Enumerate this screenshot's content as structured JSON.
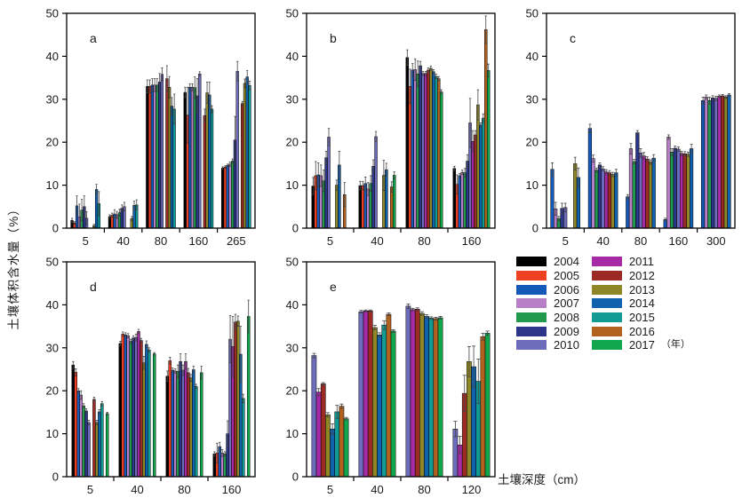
{
  "figure": {
    "ylabel": "土壤体积含水量（%）",
    "xlabel": "土壤深度（cm）",
    "legend_unit": "（年）"
  },
  "colors": {
    "2004": "#000000",
    "2005": "#ee4023",
    "2006": "#1459b8",
    "2007": "#b77fc5",
    "2008": "#219a4d",
    "2009": "#2b3589",
    "2010": "#6d6cba",
    "2011": "#a62aa5",
    "2012": "#9c2b25",
    "2013": "#8f8627",
    "2014": "#1061ae",
    "2015": "#129a94",
    "2016": "#b2611f",
    "2017": "#0fa64e"
  },
  "legend": {
    "columns": [
      [
        "2004",
        "2005",
        "2006",
        "2007",
        "2008",
        "2009",
        "2010"
      ],
      [
        "2011",
        "2012",
        "2013",
        "2014",
        "2015",
        "2016",
        "2017"
      ]
    ]
  },
  "chart_data": [
    {
      "type": "bar",
      "panel": "a",
      "ylim": [
        0,
        50
      ],
      "yticks": [
        0,
        10,
        20,
        30,
        40,
        50
      ],
      "categories": [
        "5",
        "40",
        "80",
        "160",
        "265"
      ],
      "years": [
        "2004",
        "2005",
        "2006",
        "2007",
        "2008",
        "2009",
        "2010",
        "2011",
        "2012",
        "2013",
        "2014",
        "2015"
      ],
      "values": [
        [
          1.8,
          1.2,
          5.2,
          2.6,
          4.2,
          5.0,
          2.3,
          null,
          null,
          0.6,
          9.0,
          5.7
        ],
        [
          2.7,
          3.0,
          3.3,
          3.1,
          3.6,
          4.6,
          5.0,
          null,
          null,
          2.2,
          5.3,
          5.4
        ],
        [
          33.0,
          33.0,
          33.3,
          33.3,
          33.3,
          34.0,
          35.8,
          null,
          34.8,
          32.8,
          28.4,
          27.7
        ],
        [
          31.6,
          26.3,
          32.8,
          32.8,
          32.7,
          30.8,
          35.9,
          null,
          26.2,
          31.5,
          31.0,
          27.7
        ],
        [
          14.0,
          14.2,
          14.6,
          14.9,
          15.6,
          20.5,
          36.5,
          null,
          29.0,
          33.7,
          35.2,
          33.2
        ]
      ],
      "errors": [
        [
          0.5,
          0.3,
          2.3,
          3.0,
          2.5,
          2.5,
          1.5,
          null,
          null,
          0.3,
          1.2,
          2.8
        ],
        [
          0.4,
          0.5,
          1.0,
          0.8,
          0.8,
          0.8,
          1.0,
          null,
          null,
          0.5,
          1.0,
          1.2
        ],
        [
          1.5,
          1.5,
          1.5,
          1.5,
          1.5,
          2.0,
          1.5,
          null,
          3.0,
          2.5,
          2.0,
          3.5
        ],
        [
          1.2,
          6.5,
          0.8,
          0.8,
          2.5,
          4.0,
          0.5,
          null,
          1.5,
          2.5,
          3.0,
          0.8
        ],
        [
          0.3,
          0.3,
          0.3,
          0.5,
          0.5,
          5.5,
          2.3,
          null,
          0.5,
          1.0,
          1.5,
          1.0
        ]
      ]
    },
    {
      "type": "bar",
      "panel": "b",
      "ylim": [
        0,
        50
      ],
      "yticks": [
        0,
        10,
        20,
        30,
        40,
        50
      ],
      "categories": [
        "5",
        "40",
        "80",
        "160"
      ],
      "years": [
        "2004",
        "2005",
        "2006",
        "2007",
        "2008",
        "2009",
        "2010",
        "2011",
        "2012",
        "2013",
        "2014",
        "2015",
        "2016",
        "2017"
      ],
      "values": [
        [
          9.8,
          12.2,
          12.4,
          12.2,
          11.0,
          16.4,
          21.2,
          null,
          null,
          10.0,
          14.7,
          null,
          7.8,
          null
        ],
        [
          9.9,
          9.9,
          10.4,
          9.1,
          10.4,
          14.4,
          21.3,
          null,
          null,
          12.3,
          13.6,
          null,
          9.6,
          12.3
        ],
        [
          39.7,
          33.0,
          36.8,
          36.9,
          35.9,
          37.8,
          36.0,
          36.0,
          36.8,
          37.2,
          36.4,
          35.3,
          34.8,
          31.7
        ],
        [
          13.9,
          10.2,
          12.2,
          13.0,
          12.9,
          15.6,
          24.5,
          20.2,
          21.7,
          28.7,
          24.0,
          25.6,
          46.2,
          36.7
        ]
      ],
      "errors": [
        [
          2.0,
          3.3,
          2.8,
          2.5,
          2.5,
          1.5,
          2.0,
          null,
          null,
          1.2,
          3.2,
          null,
          2.8,
          null
        ],
        [
          1.0,
          1.0,
          1.5,
          1.5,
          1.8,
          1.5,
          1.2,
          null,
          null,
          3.5,
          1.5,
          null,
          1.2,
          0.8
        ],
        [
          1.8,
          4.0,
          1.5,
          2.5,
          3.0,
          1.0,
          0.5,
          0.5,
          0.5,
          0.5,
          0.5,
          0.5,
          0.5,
          0.5
        ],
        [
          0.5,
          2.2,
          0.5,
          0.5,
          1.0,
          1.5,
          5.7,
          2.5,
          1.0,
          3.5,
          0.5,
          1.0,
          3.2,
          1.5
        ]
      ]
    },
    {
      "type": "bar",
      "panel": "c",
      "ylim": [
        0,
        50
      ],
      "yticks": [
        0,
        10,
        20,
        30,
        40,
        50
      ],
      "categories": [
        "5",
        "40",
        "80",
        "160",
        "300"
      ],
      "years": [
        "2006",
        "2007",
        "2008",
        "2009",
        "2010",
        "2011",
        "2012",
        "2013",
        "2014"
      ],
      "values": [
        [
          13.7,
          4.5,
          2.2,
          4.6,
          4.8,
          null,
          null,
          15.0,
          11.8
        ],
        [
          23.2,
          16.2,
          13.5,
          14.7,
          13.8,
          13.1,
          12.9,
          12.5,
          12.9
        ],
        [
          7.3,
          18.5,
          15.5,
          22.2,
          17.5,
          16.8,
          16.1,
          15.4,
          16.3
        ],
        [
          2.0,
          21.2,
          17.7,
          18.6,
          18.4,
          17.4,
          17.3,
          17.2,
          18.5
        ],
        [
          29.7,
          30.5,
          29.7,
          30.3,
          30.2,
          30.7,
          30.8,
          30.5,
          31.0
        ]
      ],
      "errors": [
        [
          1.5,
          1.5,
          0.5,
          1.2,
          1.0,
          null,
          null,
          1.5,
          2.2
        ],
        [
          1.0,
          0.8,
          0.5,
          0.5,
          0.5,
          0.5,
          0.5,
          0.5,
          0.8
        ],
        [
          0.5,
          1.2,
          0.5,
          0.5,
          1.0,
          0.8,
          0.5,
          0.5,
          0.8
        ],
        [
          0.3,
          0.5,
          0.8,
          0.5,
          0.5,
          0.5,
          0.5,
          0.5,
          1.0
        ],
        [
          0.8,
          0.5,
          0.8,
          0.5,
          0.5,
          0.3,
          0.3,
          0.3,
          0.3
        ]
      ]
    },
    {
      "type": "bar",
      "panel": "d",
      "ylim": [
        0,
        50
      ],
      "yticks": [
        0,
        10,
        20,
        30,
        40,
        50
      ],
      "categories": [
        "5",
        "40",
        "80",
        "160"
      ],
      "years": [
        "2004",
        "2005",
        "2006",
        "2007",
        "2008",
        "2009",
        "2010",
        "2011",
        "2012",
        "2013",
        "2014",
        "2015",
        "2016",
        "2017"
      ],
      "values": [
        [
          26.0,
          24.3,
          20.0,
          19.0,
          16.5,
          15.3,
          12.6,
          null,
          18.0,
          12.6,
          15.1,
          17.0,
          null,
          14.7
        ],
        [
          31.0,
          33.2,
          33.0,
          32.8,
          31.5,
          32.3,
          32.4,
          33.8,
          31.7,
          26.5,
          30.8,
          29.5,
          null,
          28.6
        ],
        [
          23.4,
          27.0,
          24.8,
          24.6,
          24.5,
          26.8,
          24.8,
          26.8,
          24.2,
          23.0,
          24.9,
          21.0,
          null,
          24.2
        ],
        [
          5.3,
          5.5,
          7.0,
          5.5,
          5.3,
          10.0,
          32.0,
          30.3,
          36.0,
          36.2,
          28.5,
          18.2,
          null,
          37.3
        ]
      ],
      "errors": [
        [
          0.8,
          0.8,
          0.5,
          1.0,
          0.5,
          0.5,
          0.5,
          null,
          0.5,
          0.5,
          0.5,
          0.5,
          null,
          0.3
        ],
        [
          0.5,
          0.5,
          0.5,
          0.5,
          0.5,
          0.5,
          0.8,
          0.5,
          0.5,
          1.5,
          0.8,
          0.5,
          null,
          0.3
        ],
        [
          1.2,
          0.8,
          0.5,
          0.5,
          1.5,
          1.8,
          1.2,
          1.8,
          1.0,
          0.8,
          0.8,
          0.5,
          null,
          1.5
        ],
        [
          0.5,
          2.3,
          1.0,
          0.8,
          0.5,
          3.0,
          5.5,
          7.0,
          1.8,
          1.2,
          6.5,
          1.0,
          null,
          3.8
        ]
      ]
    },
    {
      "type": "bar",
      "panel": "e",
      "ylim": [
        0,
        50
      ],
      "yticks": [
        0,
        10,
        20,
        30,
        40,
        50
      ],
      "categories": [
        "5",
        "40",
        "80",
        "120"
      ],
      "years": [
        "2010",
        "2011",
        "2012",
        "2013",
        "2014",
        "2015",
        "2016",
        "2017"
      ],
      "values": [
        [
          28.2,
          19.7,
          21.6,
          14.4,
          11.1,
          15.1,
          16.4,
          13.5
        ],
        [
          38.4,
          38.6,
          38.6,
          34.7,
          33.0,
          35.3,
          37.8,
          33.9
        ],
        [
          39.7,
          38.9,
          39.0,
          38.0,
          37.3,
          36.9,
          36.8,
          37.0
        ],
        [
          11.1,
          7.4,
          19.4,
          26.8,
          25.6,
          22.2,
          32.6,
          33.4
        ]
      ],
      "errors": [
        [
          0.5,
          0.8,
          0.3,
          0.5,
          1.2,
          1.5,
          0.5,
          0.3
        ],
        [
          0.3,
          0.2,
          0.2,
          0.5,
          0.5,
          1.0,
          0.3,
          0.3
        ],
        [
          0.5,
          0.3,
          0.3,
          0.4,
          0.4,
          0.3,
          0.3,
          0.3
        ],
        [
          1.8,
          2.0,
          4.2,
          3.5,
          4.8,
          5.2,
          0.8,
          0.5
        ]
      ]
    }
  ]
}
